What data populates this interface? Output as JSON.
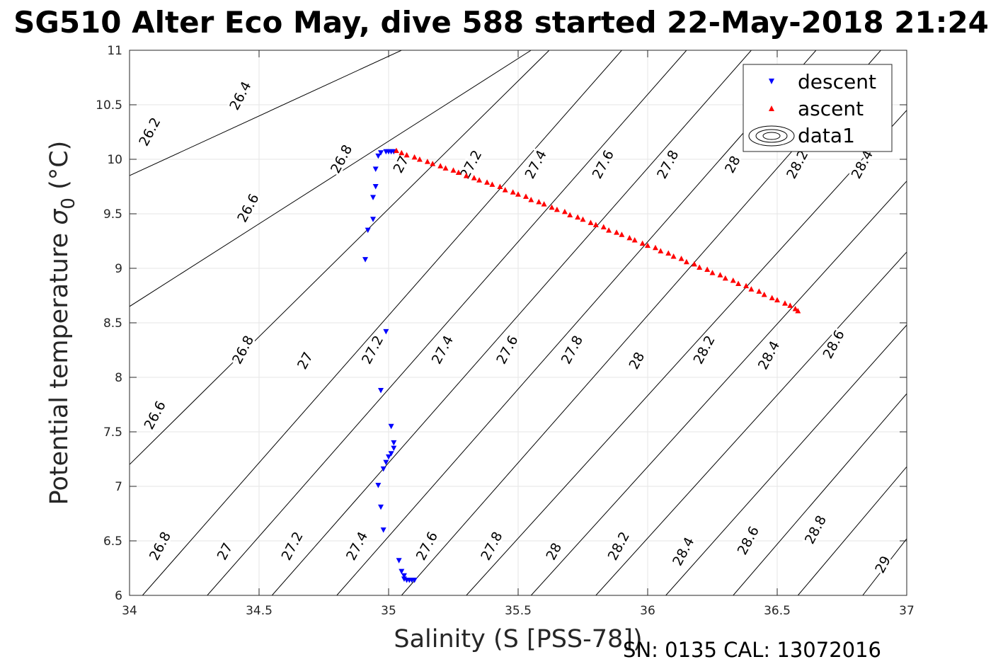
{
  "chart_data": {
    "type": "scatter",
    "title": "SG510 Alter Eco May, dive 588 started 22-May-2018 21:24",
    "xlabel": "Salinity (S [PSS-78])",
    "ylabel_main": "Potential temperature ",
    "ylabel_sigma": "σ",
    "ylabel_sub": "0",
    "ylabel_unit": " (°C)",
    "xlim": [
      34,
      37
    ],
    "ylim": [
      6,
      11
    ],
    "xticks": [
      "34",
      "34.5",
      "35",
      "35.5",
      "36",
      "36.5",
      "37"
    ],
    "yticks": [
      "6",
      "6.5",
      "7",
      "7.5",
      "8",
      "8.5",
      "9",
      "9.5",
      "10",
      "10.5",
      "11"
    ],
    "grid": true,
    "legend_position": "top-right",
    "legend": [
      "descent",
      "ascent",
      "data1"
    ],
    "colors": {
      "descent": "#0000ff",
      "ascent": "#ff0000",
      "contour": "#000000",
      "grid": "#e6e6e6"
    },
    "footer": "SN: 0135  CAL: 13072016",
    "series": [
      {
        "name": "descent",
        "marker": "triangle-down",
        "points": [
          [
            34.91,
            9.08
          ],
          [
            34.92,
            9.35
          ],
          [
            34.94,
            9.45
          ],
          [
            34.94,
            9.65
          ],
          [
            34.95,
            9.75
          ],
          [
            34.95,
            9.91
          ],
          [
            34.96,
            10.03
          ],
          [
            34.97,
            10.06
          ],
          [
            34.99,
            10.07
          ],
          [
            35.0,
            10.07
          ],
          [
            35.01,
            10.07
          ],
          [
            35.02,
            10.07
          ],
          [
            34.99,
            8.42
          ],
          [
            34.97,
            7.88
          ],
          [
            35.01,
            7.55
          ],
          [
            35.02,
            7.4
          ],
          [
            35.02,
            7.35
          ],
          [
            35.01,
            7.3
          ],
          [
            35.0,
            7.27
          ],
          [
            34.99,
            7.22
          ],
          [
            34.98,
            7.16
          ],
          [
            34.96,
            7.01
          ],
          [
            34.97,
            6.81
          ],
          [
            34.98,
            6.6
          ],
          [
            35.04,
            6.32
          ],
          [
            35.05,
            6.22
          ],
          [
            35.06,
            6.18
          ],
          [
            35.06,
            6.15
          ],
          [
            35.07,
            6.14
          ],
          [
            35.08,
            6.14
          ],
          [
            35.09,
            6.14
          ],
          [
            35.1,
            6.14
          ]
        ]
      },
      {
        "name": "ascent",
        "marker": "triangle-up",
        "points": [
          [
            35.03,
            10.08
          ],
          [
            35.05,
            10.06
          ],
          [
            35.07,
            10.04
          ],
          [
            35.1,
            10.02
          ],
          [
            35.12,
            10.0
          ],
          [
            35.15,
            9.98
          ],
          [
            35.17,
            9.96
          ],
          [
            35.2,
            9.94
          ],
          [
            35.22,
            9.92
          ],
          [
            35.25,
            9.9
          ],
          [
            35.27,
            9.88
          ],
          [
            35.3,
            9.85
          ],
          [
            35.33,
            9.83
          ],
          [
            35.35,
            9.81
          ],
          [
            35.38,
            9.79
          ],
          [
            35.4,
            9.77
          ],
          [
            35.43,
            9.75
          ],
          [
            35.45,
            9.72
          ],
          [
            35.48,
            9.7
          ],
          [
            35.5,
            9.68
          ],
          [
            35.53,
            9.66
          ],
          [
            35.55,
            9.63
          ],
          [
            35.58,
            9.61
          ],
          [
            35.6,
            9.59
          ],
          [
            35.63,
            9.56
          ],
          [
            35.65,
            9.54
          ],
          [
            35.68,
            9.52
          ],
          [
            35.7,
            9.49
          ],
          [
            35.73,
            9.47
          ],
          [
            35.75,
            9.45
          ],
          [
            35.78,
            9.42
          ],
          [
            35.8,
            9.4
          ],
          [
            35.83,
            9.38
          ],
          [
            35.85,
            9.35
          ],
          [
            35.88,
            9.33
          ],
          [
            35.9,
            9.31
          ],
          [
            35.93,
            9.28
          ],
          [
            35.95,
            9.26
          ],
          [
            35.98,
            9.23
          ],
          [
            36.0,
            9.21
          ],
          [
            36.03,
            9.19
          ],
          [
            36.05,
            9.16
          ],
          [
            36.08,
            9.14
          ],
          [
            36.1,
            9.11
          ],
          [
            36.13,
            9.09
          ],
          [
            36.15,
            9.06
          ],
          [
            36.18,
            9.04
          ],
          [
            36.2,
            9.01
          ],
          [
            36.23,
            8.99
          ],
          [
            36.25,
            8.96
          ],
          [
            36.28,
            8.94
          ],
          [
            36.3,
            8.91
          ],
          [
            36.33,
            8.89
          ],
          [
            36.35,
            8.86
          ],
          [
            36.38,
            8.84
          ],
          [
            36.4,
            8.81
          ],
          [
            36.43,
            8.79
          ],
          [
            36.45,
            8.76
          ],
          [
            36.48,
            8.73
          ],
          [
            36.5,
            8.71
          ],
          [
            36.53,
            8.68
          ],
          [
            36.55,
            8.66
          ],
          [
            36.57,
            8.63
          ],
          [
            36.58,
            8.61
          ]
        ]
      }
    ],
    "contours": [
      {
        "label": "26.2",
        "x": [
          34.0,
          35.05
        ],
        "y": [
          9.85,
          11.0
        ]
      },
      {
        "label": "26.4",
        "x": [
          34.0,
          35.55
        ],
        "y": [
          8.65,
          11.0
        ]
      },
      {
        "label": "26.6",
        "x": [
          34.0,
          35.62
        ],
        "y": [
          7.2,
          11.0
        ]
      },
      {
        "label": "26.8",
        "x": [
          34.05,
          35.9
        ],
        "y": [
          6.0,
          11.0
        ]
      },
      {
        "label": "27",
        "x": [
          34.3,
          36.15
        ],
        "y": [
          6.0,
          11.0
        ]
      },
      {
        "label": "27.2",
        "x": [
          34.55,
          36.4
        ],
        "y": [
          6.0,
          11.0
        ]
      },
      {
        "label": "27.4",
        "x": [
          34.8,
          36.65
        ],
        "y": [
          6.0,
          11.0
        ]
      },
      {
        "label": "27.6",
        "x": [
          35.05,
          36.9
        ],
        "y": [
          6.0,
          11.0
        ]
      },
      {
        "label": "27.8",
        "x": [
          35.3,
          37.0
        ],
        "y": [
          6.0,
          10.45
        ]
      },
      {
        "label": "28",
        "x": [
          35.55,
          37.0
        ],
        "y": [
          6.0,
          9.8
        ]
      },
      {
        "label": "28.2",
        "x": [
          35.8,
          37.0
        ],
        "y": [
          6.0,
          9.15
        ]
      },
      {
        "label": "28.4",
        "x": [
          36.07,
          37.0
        ],
        "y": [
          6.0,
          8.48
        ]
      },
      {
        "label": "28.6",
        "x": [
          36.33,
          37.0
        ],
        "y": [
          6.0,
          7.85
        ]
      },
      {
        "label": "28.8",
        "x": [
          36.58,
          37.0
        ],
        "y": [
          6.0,
          7.18
        ]
      },
      {
        "label": "29",
        "x": [
          36.83,
          37.0
        ],
        "y": [
          6.0,
          6.52
        ]
      }
    ],
    "contour_labels": [
      {
        "text": "26.2",
        "x": 34.08,
        "y": 10.25
      },
      {
        "text": "26.4",
        "x": 34.43,
        "y": 10.58
      },
      {
        "text": "26.6",
        "x": 34.46,
        "y": 9.55
      },
      {
        "text": "26.8",
        "x": 34.82,
        "y": 10.0
      },
      {
        "text": "27",
        "x": 35.05,
        "y": 9.95
      },
      {
        "text": "27.2",
        "x": 35.32,
        "y": 9.95
      },
      {
        "text": "27.4",
        "x": 35.57,
        "y": 9.95
      },
      {
        "text": "27.6",
        "x": 35.83,
        "y": 9.95
      },
      {
        "text": "27.8",
        "x": 36.08,
        "y": 9.95
      },
      {
        "text": "28",
        "x": 36.33,
        "y": 9.95
      },
      {
        "text": "28.2",
        "x": 36.58,
        "y": 9.95
      },
      {
        "text": "28.4",
        "x": 36.83,
        "y": 9.95
      },
      {
        "text": "26.6",
        "x": 34.1,
        "y": 7.65
      },
      {
        "text": "26.8",
        "x": 34.44,
        "y": 8.25
      },
      {
        "text": "27",
        "x": 34.68,
        "y": 8.15
      },
      {
        "text": "27.2",
        "x": 34.94,
        "y": 8.25
      },
      {
        "text": "27.4",
        "x": 35.21,
        "y": 8.25
      },
      {
        "text": "27.6",
        "x": 35.46,
        "y": 8.25
      },
      {
        "text": "27.8",
        "x": 35.71,
        "y": 8.25
      },
      {
        "text": "28",
        "x": 35.96,
        "y": 8.15
      },
      {
        "text": "28.2",
        "x": 36.22,
        "y": 8.25
      },
      {
        "text": "28.4",
        "x": 36.47,
        "y": 8.2
      },
      {
        "text": "28.6",
        "x": 36.72,
        "y": 8.3
      },
      {
        "text": "26.8",
        "x": 34.12,
        "y": 6.45
      },
      {
        "text": "27",
        "x": 34.37,
        "y": 6.4
      },
      {
        "text": "27.2",
        "x": 34.63,
        "y": 6.45
      },
      {
        "text": "27.4",
        "x": 34.88,
        "y": 6.45
      },
      {
        "text": "27.6",
        "x": 35.15,
        "y": 6.45
      },
      {
        "text": "27.8",
        "x": 35.4,
        "y": 6.45
      },
      {
        "text": "28",
        "x": 35.64,
        "y": 6.4
      },
      {
        "text": "28.2",
        "x": 35.89,
        "y": 6.45
      },
      {
        "text": "28.4",
        "x": 36.14,
        "y": 6.4
      },
      {
        "text": "28.6",
        "x": 36.39,
        "y": 6.5
      },
      {
        "text": "28.8",
        "x": 36.65,
        "y": 6.6
      },
      {
        "text": "29",
        "x": 36.91,
        "y": 6.28
      }
    ]
  }
}
